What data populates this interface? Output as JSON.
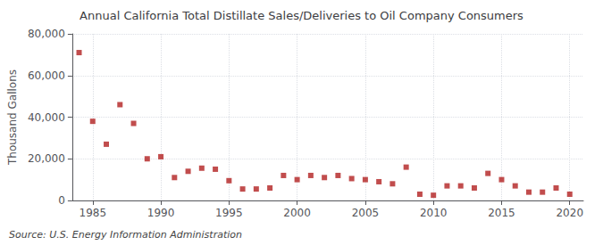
{
  "chart_data": {
    "type": "scatter",
    "title": "Annual California Total Distillate Sales/Deliveries to Oil Company Consumers",
    "ylabel": "Thousand Gallons",
    "annotation": "Source: U.S. Energy Information Administration",
    "x": [
      1984,
      1985,
      1986,
      1987,
      1988,
      1989,
      1990,
      1991,
      1992,
      1993,
      1994,
      1995,
      1996,
      1997,
      1998,
      1999,
      2000,
      2001,
      2002,
      2003,
      2004,
      2005,
      2006,
      2007,
      2008,
      2009,
      2010,
      2011,
      2012,
      2013,
      2014,
      2015,
      2016,
      2017,
      2018,
      2019,
      2020
    ],
    "values": [
      71000,
      38000,
      27000,
      46000,
      37000,
      20000,
      21000,
      11000,
      14000,
      15500,
      15000,
      9500,
      5500,
      5500,
      6000,
      12000,
      10000,
      12000,
      11000,
      12000,
      10500,
      10000,
      9000,
      8000,
      16000,
      3000,
      2500,
      7000,
      7000,
      6000,
      13000,
      10000,
      7000,
      4000,
      4000,
      6000,
      3000
    ],
    "color": "#b22020",
    "marker": "square",
    "xlim": [
      1983.5,
      2021
    ],
    "xticks": [
      1985,
      1990,
      1995,
      2000,
      2005,
      2010,
      2015,
      2020
    ],
    "ylim": [
      0,
      80000
    ],
    "yticks": [
      0,
      {
        "value": 20000,
        "label": "20,000"
      },
      {
        "value": 40000,
        "label": "40,000"
      },
      {
        "value": 60000,
        "label": "60,000"
      },
      {
        "value": 80000,
        "label": "80,000"
      }
    ],
    "grid": true
  }
}
